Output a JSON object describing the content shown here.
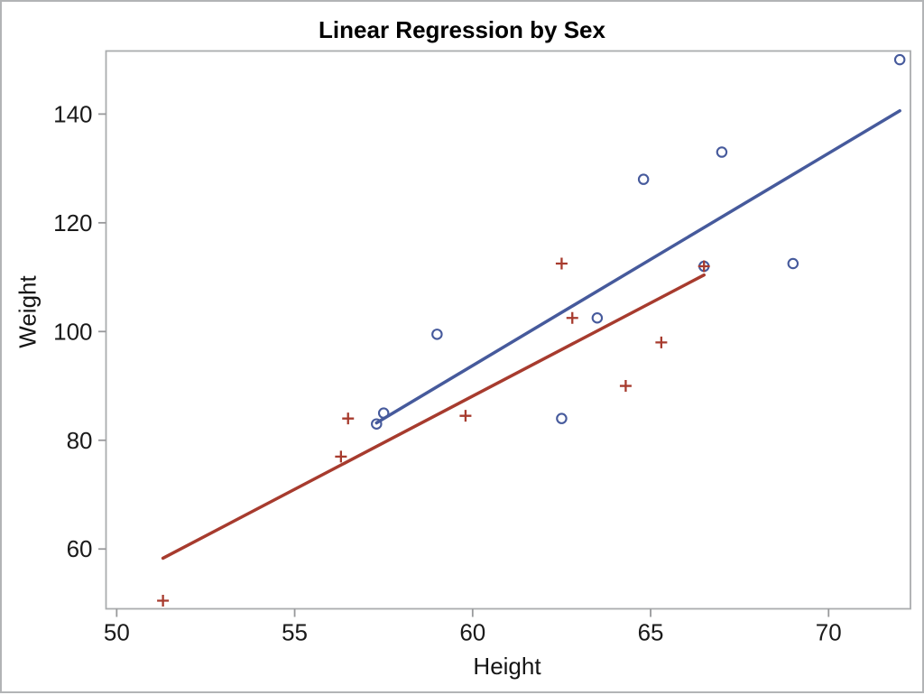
{
  "chart_data": {
    "type": "scatter",
    "title": "Linear Regression by Sex",
    "xlabel": "Height",
    "ylabel": "Weight",
    "xlim": [
      49.7,
      72.3
    ],
    "ylim": [
      49.0,
      151.6
    ],
    "xticks": [
      50,
      55,
      60,
      65,
      70
    ],
    "yticks": [
      60,
      80,
      100,
      120,
      140
    ],
    "grid": false,
    "legend": "none",
    "colors": {
      "series1": "#465A9C",
      "series2": "#A73B2E",
      "frame": "#aaacae",
      "tick": "#98999b",
      "text": "#1a1a1a"
    },
    "series": [
      {
        "name": "group-circle-markers",
        "marker": "circle",
        "color_key": "series1",
        "points": [
          [
            57.3,
            83.0
          ],
          [
            57.5,
            85.0
          ],
          [
            59.0,
            99.5
          ],
          [
            62.5,
            84.0
          ],
          [
            63.5,
            102.5
          ],
          [
            64.8,
            128.0
          ],
          [
            66.5,
            112.0
          ],
          [
            67.0,
            133.0
          ],
          [
            69.0,
            112.5
          ],
          [
            72.0,
            150.0
          ]
        ]
      },
      {
        "name": "group-plus-markers",
        "marker": "plus",
        "color_key": "series2",
        "points": [
          [
            51.3,
            50.5
          ],
          [
            56.3,
            77.0
          ],
          [
            56.5,
            84.0
          ],
          [
            59.8,
            84.5
          ],
          [
            62.5,
            112.5
          ],
          [
            62.8,
            102.5
          ],
          [
            64.3,
            90.0
          ],
          [
            65.3,
            98.0
          ],
          [
            66.5,
            112.0
          ]
        ]
      }
    ],
    "regression_lines": [
      {
        "name": "fit-line-circle-group",
        "color_key": "series1",
        "from": [
          57.3,
          83.2
        ],
        "to": [
          72.0,
          140.6
        ]
      },
      {
        "name": "fit-line-plus-group",
        "color_key": "series2",
        "from": [
          51.3,
          58.3
        ],
        "to": [
          66.5,
          110.4
        ]
      }
    ]
  }
}
